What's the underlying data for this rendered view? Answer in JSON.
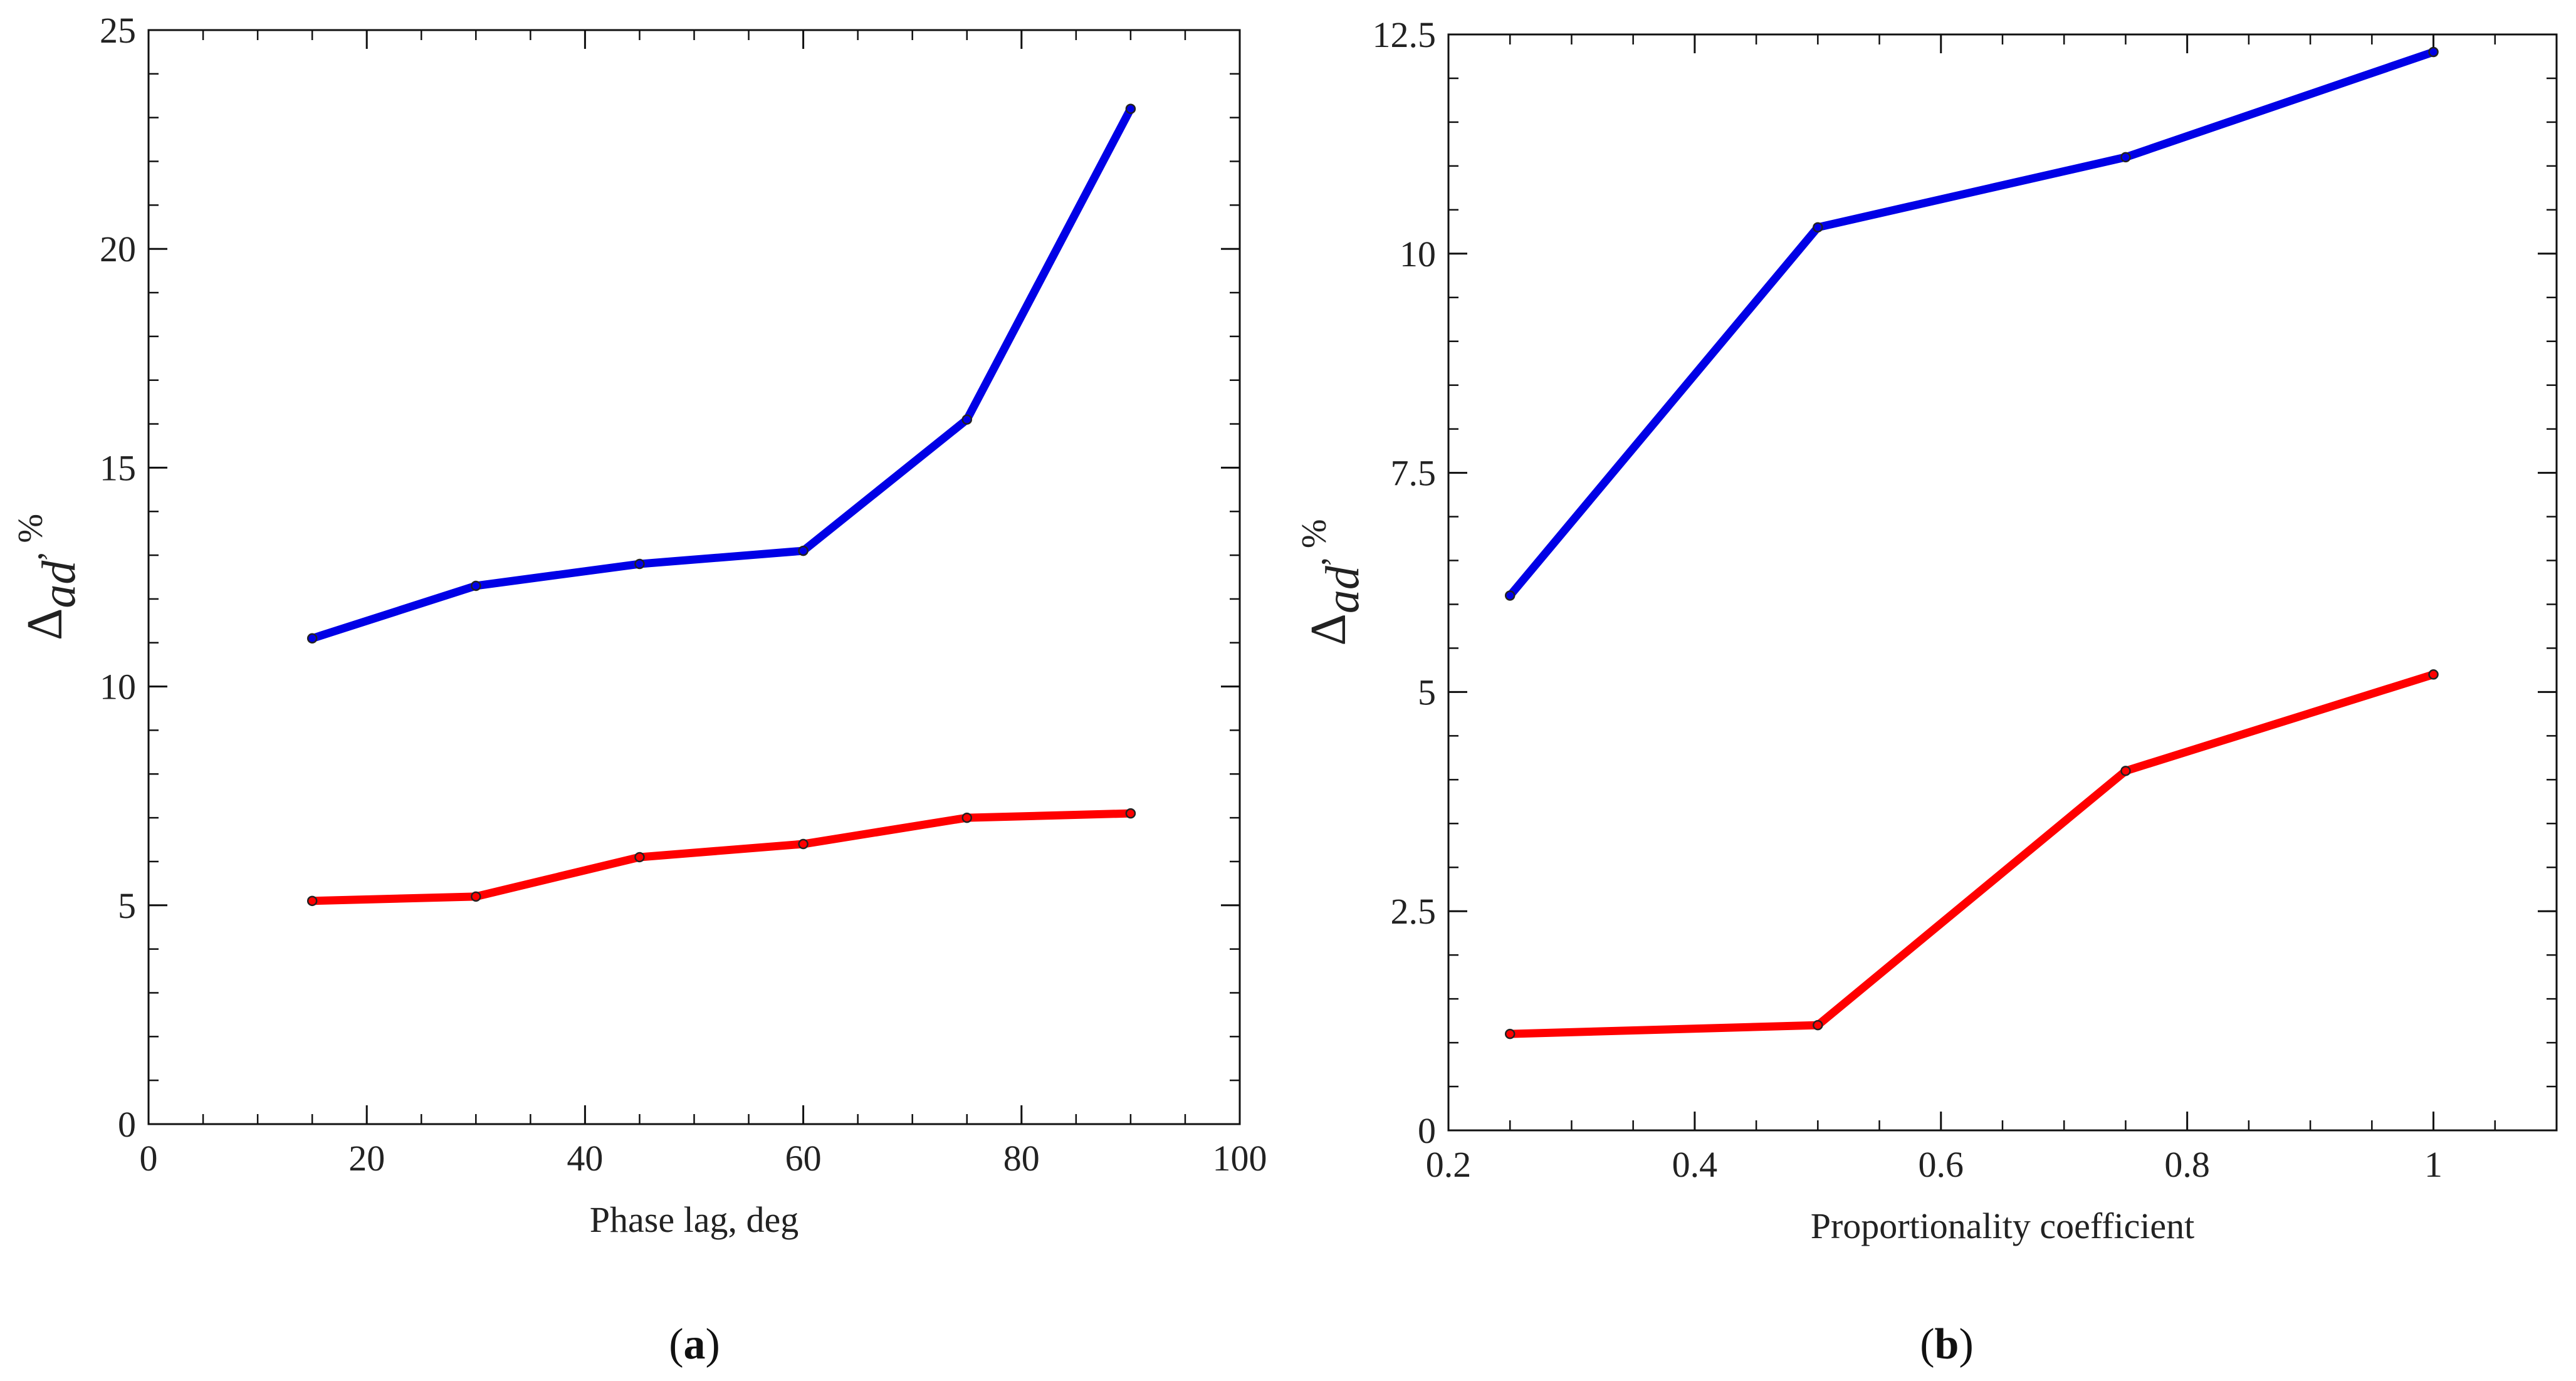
{
  "chart_data": [
    {
      "type": "line",
      "panel": "a",
      "panel_label": "a",
      "xlabel": "Phase lag, deg",
      "ylabel": {
        "symbol": "Δ",
        "subscript": "ad",
        "unit": ", %"
      },
      "xlim": [
        0,
        100
      ],
      "ylim": [
        0,
        25
      ],
      "x_ticks": [
        0,
        20,
        40,
        60,
        80,
        100
      ],
      "x_tick_labels": [
        "0",
        "20",
        "40",
        "60",
        "80",
        "100"
      ],
      "x_minor_step": 5,
      "y_ticks": [
        0,
        5,
        10,
        15,
        20,
        25
      ],
      "y_tick_labels": [
        "0",
        "5",
        "10",
        "15",
        "20",
        "25"
      ],
      "y_minor_step": 1,
      "grid": false,
      "x": [
        15,
        30,
        45,
        60,
        75,
        90
      ],
      "series": [
        {
          "name": "blue",
          "color": "#0000e6",
          "values": [
            11.1,
            12.3,
            12.8,
            13.1,
            16.1,
            23.2
          ]
        },
        {
          "name": "red",
          "color": "#ff0000",
          "values": [
            5.1,
            5.2,
            6.1,
            6.4,
            7.0,
            7.1
          ]
        }
      ]
    },
    {
      "type": "line",
      "panel": "b",
      "panel_label": "b",
      "xlabel": "Proportionality coefficient",
      "ylabel": {
        "symbol": "Δ",
        "subscript": "ad",
        "unit": ", %"
      },
      "xlim": [
        0.2,
        1.1
      ],
      "ylim": [
        0,
        12.5
      ],
      "x_ticks": [
        0.2,
        0.4,
        0.6,
        0.8,
        1.0
      ],
      "x_tick_labels": [
        "0.2",
        "0.4",
        "0.6",
        "0.8",
        "1"
      ],
      "x_minor_step": 0.05,
      "y_ticks": [
        0,
        2.5,
        5,
        7.5,
        10,
        12.5
      ],
      "y_tick_labels": [
        "0",
        "2.5",
        "5",
        "7.5",
        "10",
        "12.5"
      ],
      "y_minor_step": 0.5,
      "grid": false,
      "x": [
        0.25,
        0.5,
        0.75,
        1.0
      ],
      "series": [
        {
          "name": "blue",
          "color": "#0000e6",
          "values": [
            6.1,
            10.3,
            11.1,
            12.3
          ]
        },
        {
          "name": "red",
          "color": "#ff0000",
          "values": [
            1.1,
            1.2,
            4.1,
            5.2
          ]
        }
      ]
    }
  ]
}
